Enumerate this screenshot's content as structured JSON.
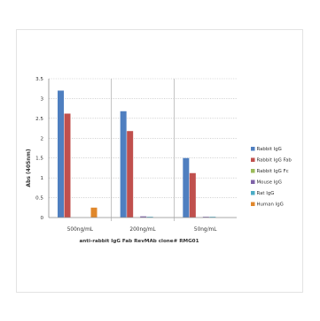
{
  "chart_data": {
    "type": "bar",
    "title": "",
    "ylabel": "Abs (405nm)",
    "xlabel": "anti-rabbit IgG Fab RevMAb clone# RMG01",
    "ylim": [
      0,
      3.5
    ],
    "yticks": [
      "0",
      "0.5",
      "1",
      "1.5",
      "2",
      "2.5",
      "3",
      "3.5"
    ],
    "grid": "horizontal-dotted",
    "legend_position": "right",
    "categories": [
      "500ng/mL",
      "200ng/mL",
      "50ng/mL"
    ],
    "series": [
      {
        "name": "Rabbit IgG",
        "color": "#4f7fc0",
        "values": [
          3.2,
          2.68,
          1.5
        ]
      },
      {
        "name": "Rabbit IgG Fab",
        "color": "#c0504d",
        "values": [
          2.62,
          2.18,
          1.12
        ]
      },
      {
        "name": "Rabbit IgG Fc",
        "color": "#9bbb59",
        "values": [
          0.0,
          0.0,
          0.0
        ]
      },
      {
        "name": "Mouse IgG",
        "color": "#7e62a8",
        "values": [
          0.0,
          0.03,
          0.02
        ]
      },
      {
        "name": "Rat IgG",
        "color": "#4bacc6",
        "values": [
          0.0,
          0.02,
          0.02
        ]
      },
      {
        "name": "Human IgG",
        "color": "#e0872b",
        "values": [
          0.25,
          0.0,
          0.0
        ]
      }
    ]
  }
}
